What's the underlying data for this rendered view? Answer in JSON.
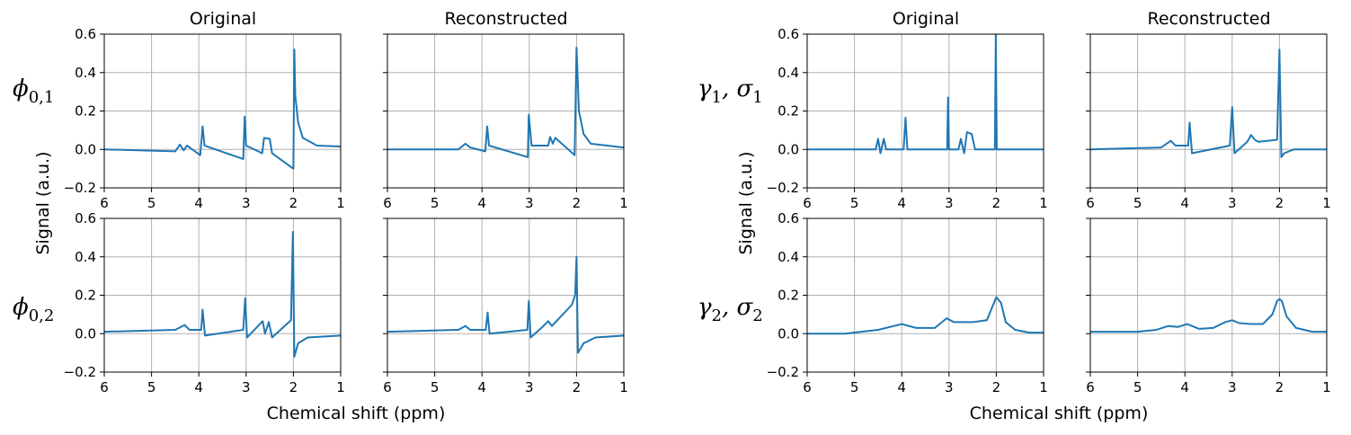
{
  "figure": {
    "column_titles": [
      "Original",
      "Reconstructed",
      "Original",
      "Reconstructed"
    ],
    "xlabel_left": "Chemical shift (ppm)",
    "xlabel_right": "Chemical shift (ppm)",
    "ylabel_left": "Signal (a.u.)",
    "ylabel_right": "Signal (a.u.)",
    "row_labels": [
      {
        "main": "ϕ",
        "sub": "0,1"
      },
      {
        "main": "ϕ",
        "sub": "0,2"
      },
      {
        "main": "γ",
        "sub": "1",
        "main2": "σ",
        "sub2": "1"
      },
      {
        "main": "γ",
        "sub": "2",
        "main2": "σ",
        "sub2": "2"
      }
    ],
    "line_color": "#1f77b4",
    "grid_color": "#b0b0b0"
  },
  "chart_data": [
    {
      "type": "line",
      "group": "phi",
      "row": 1,
      "col": "Original",
      "xlim": [
        6,
        1
      ],
      "ylim": [
        -0.2,
        0.6
      ],
      "xticks": [
        "6",
        "5",
        "4",
        "3",
        "2",
        "1"
      ],
      "yticks": [
        "−0.2",
        "0.0",
        "0.2",
        "0.4",
        "0.6"
      ],
      "grid": true,
      "series": [
        {
          "x": [
            6,
            4.5,
            4.4,
            4.32,
            4.25,
            3.97,
            3.92,
            3.88,
            3.06,
            3.03,
            3.0,
            2.66,
            2.62,
            2.5,
            2.45,
            2.0,
            1.98,
            1.96,
            1.9,
            1.8,
            1.5,
            1.0
          ],
          "y": [
            0.0,
            -0.01,
            0.025,
            -0.005,
            0.02,
            -0.03,
            0.12,
            0.02,
            -0.05,
            0.17,
            0.02,
            -0.02,
            0.06,
            0.055,
            -0.02,
            -0.1,
            0.52,
            0.28,
            0.14,
            0.06,
            0.02,
            0.015
          ]
        }
      ]
    },
    {
      "type": "line",
      "group": "phi",
      "row": 1,
      "col": "Reconstructed",
      "xlim": [
        6,
        1
      ],
      "ylim": [
        -0.2,
        0.6
      ],
      "xticks": [
        "6",
        "5",
        "4",
        "3",
        "2",
        "1"
      ],
      "yticks": [
        "−0.2",
        "0.0",
        "0.2",
        "0.4",
        "0.6"
      ],
      "grid": true,
      "series": [
        {
          "x": [
            6,
            4.5,
            4.35,
            4.25,
            3.93,
            3.89,
            3.85,
            3.03,
            3.01,
            2.95,
            2.6,
            2.56,
            2.5,
            2.45,
            2.04,
            2.0,
            1.95,
            1.85,
            1.7,
            1.0
          ],
          "y": [
            0.0,
            0.0,
            0.03,
            0.01,
            -0.01,
            0.12,
            0.02,
            -0.04,
            0.18,
            0.02,
            0.02,
            0.065,
            0.03,
            0.06,
            -0.03,
            0.53,
            0.2,
            0.08,
            0.03,
            0.01
          ]
        }
      ]
    },
    {
      "type": "line",
      "group": "phi",
      "row": 2,
      "col": "Original",
      "xlim": [
        6,
        1
      ],
      "ylim": [
        -0.2,
        0.6
      ],
      "xticks": [
        "6",
        "5",
        "4",
        "3",
        "2",
        "1"
      ],
      "yticks": [
        "−0.2",
        "0.0",
        "0.2",
        "0.4",
        "0.6"
      ],
      "grid": true,
      "series": [
        {
          "x": [
            6,
            4.5,
            4.3,
            4.2,
            3.95,
            3.92,
            3.87,
            3.06,
            3.02,
            2.98,
            2.65,
            2.6,
            2.52,
            2.45,
            2.05,
            2.01,
            1.98,
            1.9,
            1.7,
            1.0
          ],
          "y": [
            0.01,
            0.02,
            0.045,
            0.02,
            0.02,
            0.125,
            -0.01,
            0.02,
            0.185,
            -0.02,
            0.065,
            0.0,
            0.06,
            -0.02,
            0.07,
            0.53,
            -0.12,
            -0.05,
            -0.02,
            -0.01
          ]
        }
      ]
    },
    {
      "type": "line",
      "group": "phi",
      "row": 2,
      "col": "Reconstructed",
      "xlim": [
        6,
        1
      ],
      "ylim": [
        -0.2,
        0.6
      ],
      "xticks": [
        "6",
        "5",
        "4",
        "3",
        "2",
        "1"
      ],
      "yticks": [
        "−0.2",
        "0.0",
        "0.2",
        "0.4",
        "0.6"
      ],
      "grid": true,
      "series": [
        {
          "x": [
            6,
            4.5,
            4.35,
            4.25,
            3.92,
            3.88,
            3.84,
            3.04,
            3.01,
            2.97,
            2.7,
            2.6,
            2.52,
            2.1,
            2.03,
            2.0,
            1.97,
            1.85,
            1.6,
            1.0
          ],
          "y": [
            0.01,
            0.02,
            0.04,
            0.02,
            0.02,
            0.11,
            0.0,
            0.02,
            0.17,
            -0.02,
            0.04,
            0.065,
            0.04,
            0.15,
            0.2,
            0.4,
            -0.1,
            -0.05,
            -0.02,
            -0.01
          ]
        }
      ]
    },
    {
      "type": "line",
      "group": "gamma",
      "row": 1,
      "col": "Original",
      "xlim": [
        6,
        1
      ],
      "ylim": [
        -0.2,
        0.6
      ],
      "xticks": [
        "6",
        "5",
        "4",
        "3",
        "2",
        "1"
      ],
      "yticks": [
        "−0.2",
        "0.0",
        "0.2",
        "0.4",
        "0.6"
      ],
      "grid": true,
      "series": [
        {
          "x": [
            6,
            4.55,
            4.5,
            4.45,
            4.38,
            4.33,
            3.96,
            3.92,
            3.88,
            3.04,
            3.02,
            3.0,
            2.8,
            2.75,
            2.68,
            2.62,
            2.52,
            2.45,
            2.03,
            2.01,
            1.99,
            1.0
          ],
          "y": [
            0.0,
            0.0,
            0.055,
            -0.02,
            0.055,
            0.0,
            0.0,
            0.165,
            0.0,
            0.0,
            0.27,
            0.0,
            0.0,
            0.055,
            -0.02,
            0.09,
            0.08,
            0.0,
            0.0,
            0.6,
            0.0,
            0.0
          ]
        }
      ]
    },
    {
      "type": "line",
      "group": "gamma",
      "row": 1,
      "col": "Reconstructed",
      "xlim": [
        6,
        1
      ],
      "ylim": [
        -0.2,
        0.6
      ],
      "xticks": [
        "6",
        "5",
        "4",
        "3",
        "2",
        "1"
      ],
      "yticks": [
        "−0.2",
        "0.0",
        "0.2",
        "0.4",
        "0.6"
      ],
      "grid": true,
      "series": [
        {
          "x": [
            6,
            4.5,
            4.3,
            4.2,
            3.93,
            3.9,
            3.85,
            3.05,
            3.0,
            2.95,
            2.68,
            2.6,
            2.52,
            2.45,
            2.05,
            2.0,
            1.96,
            1.9,
            1.7,
            1.0
          ],
          "y": [
            0.0,
            0.01,
            0.045,
            0.02,
            0.02,
            0.14,
            -0.02,
            0.02,
            0.22,
            -0.02,
            0.04,
            0.075,
            0.05,
            0.04,
            0.05,
            0.52,
            -0.04,
            -0.02,
            0.0,
            0.0
          ]
        }
      ]
    },
    {
      "type": "line",
      "group": "gamma",
      "row": 2,
      "col": "Original",
      "xlim": [
        6,
        1
      ],
      "ylim": [
        -0.2,
        0.6
      ],
      "xticks": [
        "6",
        "5",
        "4",
        "3",
        "2",
        "1"
      ],
      "yticks": [
        "−0.2",
        "0.0",
        "0.2",
        "0.4",
        "0.6"
      ],
      "grid": true,
      "series": [
        {
          "x": [
            6,
            5.2,
            4.5,
            4.0,
            3.7,
            3.3,
            3.05,
            2.9,
            2.5,
            2.2,
            2.1,
            2.0,
            1.9,
            1.8,
            1.6,
            1.3,
            1.0
          ],
          "y": [
            0.0,
            0.0,
            0.02,
            0.05,
            0.03,
            0.03,
            0.08,
            0.06,
            0.06,
            0.07,
            0.13,
            0.19,
            0.16,
            0.06,
            0.02,
            0.005,
            0.005
          ]
        }
      ]
    },
    {
      "type": "line",
      "group": "gamma",
      "row": 2,
      "col": "Reconstructed",
      "xlim": [
        6,
        1
      ],
      "ylim": [
        -0.2,
        0.6
      ],
      "xticks": [
        "6",
        "5",
        "4",
        "3",
        "2",
        "1"
      ],
      "yticks": [
        "−0.2",
        "0.0",
        "0.2",
        "0.4",
        "0.6"
      ],
      "grid": true,
      "series": [
        {
          "x": [
            6,
            5.0,
            4.6,
            4.35,
            4.15,
            3.95,
            3.7,
            3.4,
            3.15,
            3.0,
            2.85,
            2.6,
            2.35,
            2.15,
            2.05,
            2.0,
            1.95,
            1.85,
            1.65,
            1.3,
            1.0
          ],
          "y": [
            0.01,
            0.01,
            0.02,
            0.04,
            0.035,
            0.05,
            0.025,
            0.03,
            0.06,
            0.07,
            0.055,
            0.05,
            0.05,
            0.1,
            0.17,
            0.18,
            0.17,
            0.09,
            0.03,
            0.01,
            0.01
          ]
        }
      ]
    }
  ]
}
